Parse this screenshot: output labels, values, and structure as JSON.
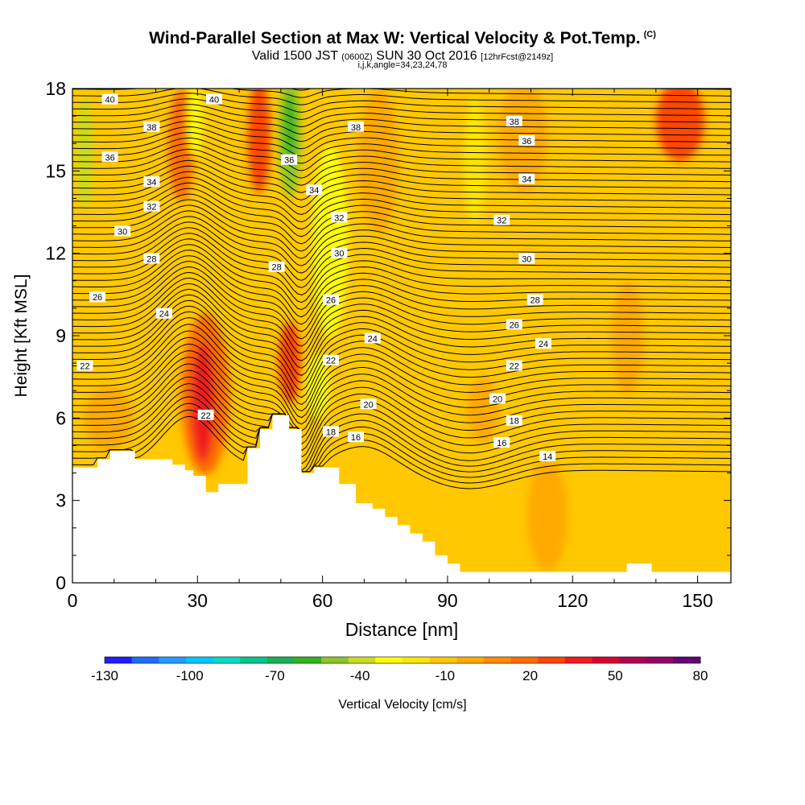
{
  "title": "Wind-Parallel Section at Max W: Vertical Velocity & Pot.Temp.",
  "copyright": "(C)",
  "valid": {
    "pre": "Valid 1500 JST",
    "utc": "(0600Z)",
    "date": "SUN 30 Oct 2016",
    "fcst": "[12hrFcst@2149z]"
  },
  "subtitle": "i,j,k,angle=34,23,24,78",
  "chart_data": {
    "type": "heatmap",
    "xlabel": "Distance [nm]",
    "ylabel": "Height [Kft MSL]",
    "xlim": [
      0,
      158
    ],
    "ylim": [
      0,
      18
    ],
    "xticks": [
      0,
      30,
      60,
      90,
      120,
      150
    ],
    "yticks": [
      0,
      3,
      6,
      9,
      12,
      15,
      18
    ],
    "colorbar": {
      "label": "Vertical Velocity [cm/s]",
      "tick_labels": [
        "-130",
        "-100",
        "-70",
        "-40",
        "-10",
        "20",
        "50",
        "80"
      ],
      "tick_values": [
        -130,
        -100,
        -70,
        -40,
        -10,
        20,
        50,
        80
      ],
      "colors": [
        "#1e1eff",
        "#1e6cff",
        "#1e9cff",
        "#00c8ff",
        "#00dcc8",
        "#00c88c",
        "#14b450",
        "#32b41e",
        "#8cc828",
        "#c8dc1e",
        "#ffff00",
        "#ffe600",
        "#ffc800",
        "#ffaa00",
        "#ff8c00",
        "#ff6e00",
        "#ff4600",
        "#f01e1e",
        "#dc0032",
        "#b40050",
        "#960064",
        "#64007a"
      ]
    },
    "terrain_kft": [
      [
        0,
        4.2
      ],
      [
        6,
        4.2
      ],
      [
        6,
        4.5
      ],
      [
        9,
        4.5
      ],
      [
        9,
        4.8
      ],
      [
        15,
        4.8
      ],
      [
        15,
        4.5
      ],
      [
        24,
        4.5
      ],
      [
        24,
        4.3
      ],
      [
        27,
        4.3
      ],
      [
        27,
        4.1
      ],
      [
        29,
        4.1
      ],
      [
        29,
        3.9
      ],
      [
        32,
        3.9
      ],
      [
        32,
        3.3
      ],
      [
        35,
        3.3
      ],
      [
        35,
        3.6
      ],
      [
        42,
        3.6
      ],
      [
        42,
        4.9
      ],
      [
        45,
        4.9
      ],
      [
        45,
        5.6
      ],
      [
        48,
        5.6
      ],
      [
        48,
        6.1
      ],
      [
        52,
        6.1
      ],
      [
        52,
        5.6
      ],
      [
        55,
        5.6
      ],
      [
        55,
        4.0
      ],
      [
        58,
        4.0
      ],
      [
        58,
        4.2
      ],
      [
        64,
        4.2
      ],
      [
        64,
        3.6
      ],
      [
        68,
        3.6
      ],
      [
        68,
        2.9
      ],
      [
        72,
        2.9
      ],
      [
        72,
        2.7
      ],
      [
        75,
        2.7
      ],
      [
        75,
        2.4
      ],
      [
        78,
        2.4
      ],
      [
        78,
        2.1
      ],
      [
        81,
        2.1
      ],
      [
        81,
        1.8
      ],
      [
        84,
        1.8
      ],
      [
        84,
        1.5
      ],
      [
        87,
        1.5
      ],
      [
        87,
        1.0
      ],
      [
        90,
        1.0
      ],
      [
        90,
        0.7
      ],
      [
        93,
        0.7
      ],
      [
        93,
        0.4
      ],
      [
        133,
        0.4
      ],
      [
        133,
        0.7
      ],
      [
        139,
        0.7
      ],
      [
        139,
        0.4
      ],
      [
        158,
        0.4
      ]
    ],
    "contour_labels": [
      {
        "x": 9,
        "y": 17.6,
        "v": "40"
      },
      {
        "x": 34,
        "y": 17.6,
        "v": "40"
      },
      {
        "x": 19,
        "y": 16.6,
        "v": "38"
      },
      {
        "x": 68,
        "y": 16.6,
        "v": "38"
      },
      {
        "x": 106,
        "y": 16.8,
        "v": "38"
      },
      {
        "x": 9,
        "y": 15.5,
        "v": "36"
      },
      {
        "x": 52,
        "y": 15.4,
        "v": "36"
      },
      {
        "x": 109,
        "y": 16.1,
        "v": "36"
      },
      {
        "x": 19,
        "y": 14.6,
        "v": "34"
      },
      {
        "x": 58,
        "y": 14.3,
        "v": "34"
      },
      {
        "x": 109,
        "y": 14.7,
        "v": "34"
      },
      {
        "x": 19,
        "y": 13.7,
        "v": "32"
      },
      {
        "x": 64,
        "y": 13.3,
        "v": "32"
      },
      {
        "x": 103,
        "y": 13.2,
        "v": "32"
      },
      {
        "x": 12,
        "y": 12.8,
        "v": "30"
      },
      {
        "x": 64,
        "y": 12.0,
        "v": "30"
      },
      {
        "x": 109,
        "y": 11.8,
        "v": "30"
      },
      {
        "x": 19,
        "y": 11.8,
        "v": "28"
      },
      {
        "x": 49,
        "y": 11.5,
        "v": "28"
      },
      {
        "x": 111,
        "y": 10.3,
        "v": "28"
      },
      {
        "x": 6,
        "y": 10.4,
        "v": "26"
      },
      {
        "x": 62,
        "y": 10.3,
        "v": "26"
      },
      {
        "x": 106,
        "y": 9.4,
        "v": "26"
      },
      {
        "x": 22,
        "y": 9.8,
        "v": "24"
      },
      {
        "x": 72,
        "y": 8.9,
        "v": "24"
      },
      {
        "x": 113,
        "y": 8.7,
        "v": "24"
      },
      {
        "x": 3,
        "y": 7.9,
        "v": "22"
      },
      {
        "x": 62,
        "y": 8.1,
        "v": "22"
      },
      {
        "x": 106,
        "y": 7.9,
        "v": "22"
      },
      {
        "x": 32,
        "y": 6.1,
        "v": "22"
      },
      {
        "x": 71,
        "y": 6.5,
        "v": "20"
      },
      {
        "x": 102,
        "y": 6.7,
        "v": "20"
      },
      {
        "x": 62,
        "y": 5.5,
        "v": "18"
      },
      {
        "x": 106,
        "y": 5.9,
        "v": "18"
      },
      {
        "x": 68,
        "y": 5.3,
        "v": "16"
      },
      {
        "x": 103,
        "y": 5.1,
        "v": "16"
      },
      {
        "x": 114,
        "y": 4.6,
        "v": "14"
      }
    ]
  }
}
